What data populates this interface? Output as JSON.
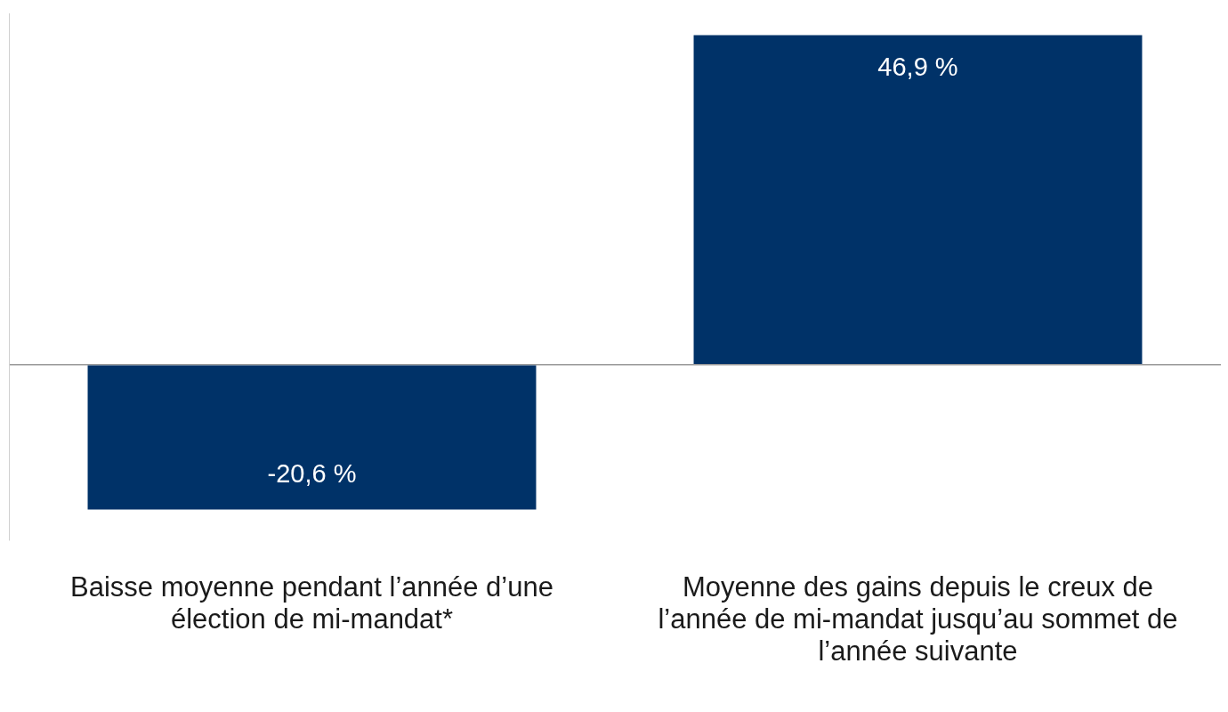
{
  "chart_data": {
    "type": "bar",
    "categories": [
      "Baisse moyenne pendant l’année d’une élection de mi-mandat*",
      "Moyenne des gains depuis le creux de l’année de mi-mandat jusqu’au sommet de l’année suivante"
    ],
    "values": [
      -20.6,
      46.9
    ],
    "value_labels": [
      "-20,6 %",
      "46,9 %"
    ],
    "color": "#003268",
    "ylim": [
      -25,
      50
    ],
    "yticks": [
      0
    ],
    "grid": true,
    "data_labels": true,
    "tick_labels": "x"
  }
}
